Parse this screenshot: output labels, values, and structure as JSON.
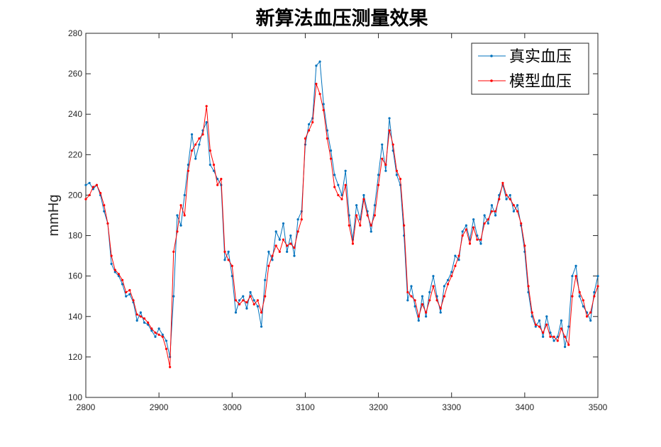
{
  "chart_data": {
    "type": "line",
    "title": "新算法血压测量效果",
    "xlabel": "",
    "ylabel": "mmHg",
    "xlim": [
      2800,
      3500
    ],
    "ylim": [
      100,
      280
    ],
    "xticks": [
      "2800",
      "2900",
      "3000",
      "3100",
      "3200",
      "3300",
      "3400",
      "3500"
    ],
    "yticks": [
      "100",
      "120",
      "140",
      "160",
      "180",
      "200",
      "220",
      "240",
      "260",
      "280"
    ],
    "legend_position": "top-right",
    "x_start": 2800,
    "x_step": 5,
    "series": [
      {
        "name": "真实血压",
        "color": "#0072BD",
        "values": [
          205,
          206,
          203,
          205,
          200,
          192,
          186,
          166,
          162,
          160,
          156,
          150,
          151,
          147,
          138,
          142,
          137,
          136,
          133,
          130,
          134,
          131,
          128,
          120,
          150,
          190,
          185,
          200,
          215,
          230,
          218,
          225,
          232,
          236,
          215,
          212,
          208,
          205,
          168,
          172,
          160,
          142,
          148,
          150,
          144,
          152,
          148,
          145,
          135,
          158,
          172,
          168,
          182,
          178,
          186,
          172,
          180,
          170,
          188,
          192,
          225,
          235,
          238,
          264,
          266,
          245,
          232,
          222,
          210,
          205,
          200,
          212,
          190,
          178,
          195,
          188,
          200,
          192,
          182,
          195,
          210,
          225,
          212,
          238,
          222,
          210,
          205,
          180,
          148,
          155,
          145,
          138,
          150,
          140,
          152,
          160,
          150,
          142,
          155,
          158,
          162,
          170,
          168,
          182,
          185,
          178,
          188,
          180,
          176,
          190,
          186,
          195,
          190,
          200,
          205,
          198,
          200,
          192,
          195,
          185,
          172,
          152,
          140,
          135,
          138,
          130,
          140,
          132,
          128,
          130,
          138,
          125,
          135,
          160,
          165,
          150,
          145,
          142,
          138,
          152,
          160
        ]
      },
      {
        "name": "模型血压",
        "color": "#FF0000",
        "values": [
          198,
          200,
          204,
          205,
          201,
          195,
          186,
          170,
          163,
          161,
          158,
          152,
          153,
          148,
          141,
          140,
          139,
          137,
          134,
          132,
          131,
          130,
          124,
          115,
          172,
          182,
          195,
          190,
          212,
          222,
          225,
          228,
          230,
          244,
          222,
          215,
          205,
          208,
          172,
          168,
          165,
          148,
          146,
          148,
          147,
          150,
          146,
          148,
          142,
          150,
          165,
          170,
          175,
          172,
          178,
          175,
          176,
          174,
          182,
          188,
          228,
          232,
          236,
          255,
          250,
          242,
          228,
          218,
          204,
          200,
          198,
          205,
          185,
          176,
          190,
          185,
          198,
          190,
          185,
          190,
          205,
          218,
          215,
          232,
          225,
          212,
          208,
          185,
          152,
          150,
          148,
          140,
          146,
          142,
          148,
          155,
          148,
          144,
          150,
          156,
          160,
          165,
          170,
          180,
          183,
          176,
          184,
          178,
          178,
          186,
          188,
          192,
          192,
          198,
          206,
          200,
          198,
          195,
          192,
          186,
          175,
          155,
          142,
          136,
          135,
          132,
          136,
          130,
          130,
          128,
          134,
          130,
          126,
          150,
          160,
          152,
          148,
          140,
          142,
          150,
          155
        ]
      }
    ]
  }
}
